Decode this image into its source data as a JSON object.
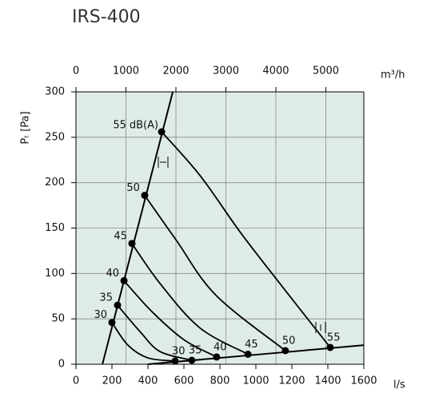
{
  "chart_data": {
    "type": "line",
    "title": "IRS-400",
    "xlabel": "l/s",
    "x2label": "m³/h",
    "ylabel": "Pₜ [Pa]",
    "sound_unit": "dB(A)",
    "xlim": [
      0,
      1600
    ],
    "xticks": [
      0,
      200,
      400,
      600,
      800,
      1000,
      1200,
      1400,
      1600
    ],
    "x2lim": [
      0,
      5760
    ],
    "x2ticks": [
      0,
      1000,
      2000,
      3000,
      4000,
      5000
    ],
    "ylim": [
      0,
      300
    ],
    "yticks": [
      0,
      50,
      100,
      150,
      200,
      250,
      300
    ],
    "grid": true,
    "plot_background": "#dfebe8",
    "color": "#000000",
    "series": [
      {
        "x": [
          147,
          538
        ],
        "values": [
          0,
          300
        ]
      },
      {
        "x": [
          400,
          1600
        ],
        "values": [
          0,
          21
        ]
      },
      {
        "name": "30",
        "end_markers": true,
        "x": [
          200,
          289,
          400,
          551
        ],
        "values": [
          46,
          21,
          7,
          3.5
        ]
      },
      {
        "name": "35",
        "end_markers": true,
        "x": [
          231,
          356,
          467,
          644
        ],
        "values": [
          65,
          36,
          14,
          4.4
        ]
      },
      {
        "name": "40",
        "end_markers": true,
        "x": [
          267,
          422,
          600,
          782
        ],
        "values": [
          92,
          58,
          27,
          8
        ]
      },
      {
        "name": "45",
        "end_markers": true,
        "x": [
          311,
          467,
          689,
          956
        ],
        "values": [
          133,
          89,
          40,
          11
        ]
      },
      {
        "name": "50",
        "end_markers": true,
        "x": [
          382,
          556,
          778,
          1164
        ],
        "values": [
          186,
          137,
          76,
          15
        ]
      },
      {
        "name": "55",
        "end_markers": true,
        "x": [
          476,
          689,
          911,
          1133,
          1413
        ],
        "values": [
          256,
          208,
          146,
          89,
          18.5
        ]
      }
    ]
  }
}
